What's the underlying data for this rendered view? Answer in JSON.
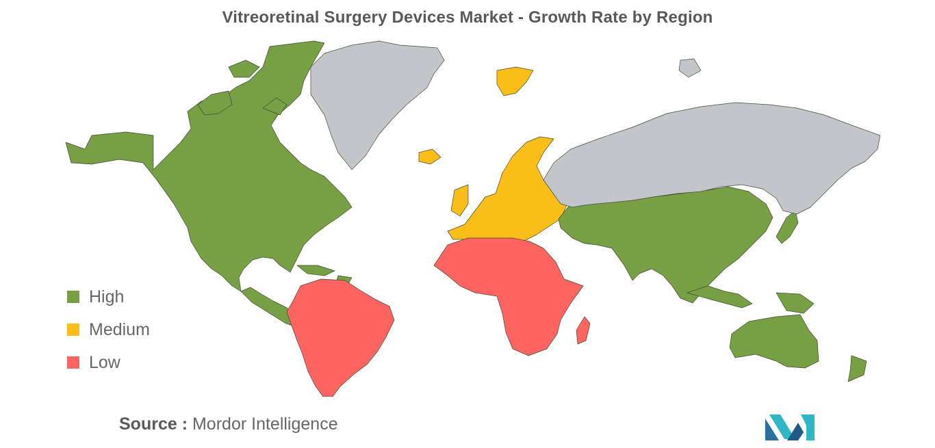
{
  "title": "Vitreoretinal Surgery Devices Market - Growth Rate by Region",
  "legend": [
    {
      "key": "high",
      "label": "High",
      "color": "#76a043"
    },
    {
      "key": "medium",
      "label": "Medium",
      "color": "#fbbd17"
    },
    {
      "key": "low",
      "label": "Low",
      "color": "#ff6461"
    }
  ],
  "no_data_color": "#c3c5cb",
  "regions": [
    {
      "name": "north-america",
      "level": "high"
    },
    {
      "name": "central-america-caribbean",
      "level": "high"
    },
    {
      "name": "south-america",
      "level": "low"
    },
    {
      "name": "europe",
      "level": "medium"
    },
    {
      "name": "africa",
      "level": "low"
    },
    {
      "name": "middle-east-asia",
      "level": "high"
    },
    {
      "name": "oceania",
      "level": "high"
    },
    {
      "name": "greenland",
      "level": "none"
    },
    {
      "name": "russia",
      "level": "none"
    }
  ],
  "source": {
    "key": "Source :",
    "value": "Mordor Intelligence"
  }
}
